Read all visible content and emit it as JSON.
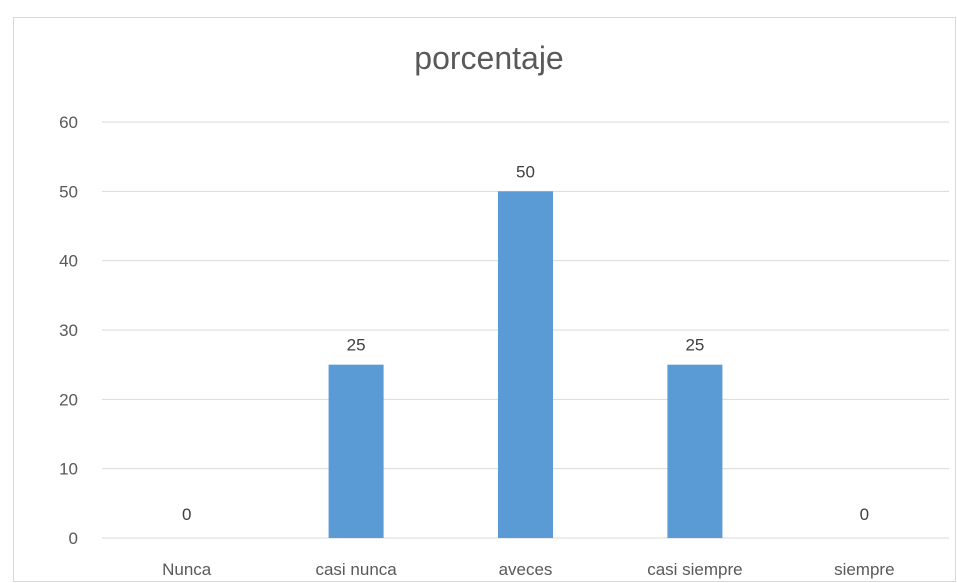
{
  "chart_data": {
    "type": "bar",
    "title": "porcentaje",
    "categories": [
      "Nunca",
      "casi nunca",
      "aveces",
      "casi siempre",
      "siempre"
    ],
    "values": [
      0,
      25,
      50,
      25,
      0
    ],
    "data_labels": [
      "0",
      "25",
      "50",
      "25",
      "0"
    ],
    "ylim": [
      0,
      60
    ],
    "yticks": [
      0,
      10,
      20,
      30,
      40,
      50,
      60
    ],
    "ytick_labels": [
      "0",
      "10",
      "20",
      "30",
      "40",
      "50",
      "60"
    ],
    "grid": true,
    "legend": "none",
    "bar_color": "#5b9bd5"
  }
}
